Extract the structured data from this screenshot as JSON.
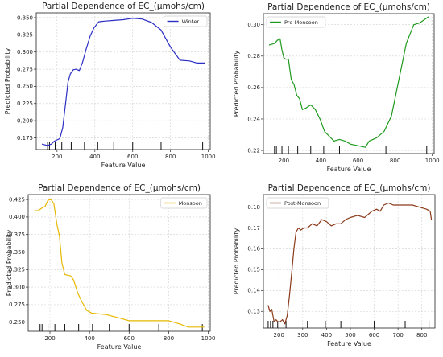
{
  "chart_data": [
    {
      "type": "line",
      "title": "Partial Dependence of EC_(µmohs/cm)",
      "xlabel": "Feature Value",
      "ylabel": "Predicted Probability",
      "xlim": [
        90,
        1010
      ],
      "ylim": [
        0.158,
        0.357
      ],
      "xticks": [
        200,
        400,
        600,
        800,
        1000
      ],
      "yticks": [
        0.175,
        0.2,
        0.225,
        0.25,
        0.275,
        0.3,
        0.325,
        0.35
      ],
      "ytick_labels": [
        "0.175",
        "0.200",
        "0.225",
        "0.250",
        "0.275",
        "0.300",
        "0.325",
        "0.350"
      ],
      "grid": true,
      "legend_position": "top-right",
      "series": [
        {
          "name": "Winter",
          "color": "#2b2fc4",
          "x": [
            120,
            150,
            170,
            185,
            200,
            215,
            230,
            245,
            258,
            270,
            285,
            300,
            318,
            335,
            355,
            375,
            395,
            420,
            450,
            500,
            550,
            600,
            650,
            700,
            750,
            800,
            850,
            900,
            940,
            980
          ],
          "y": [
            0.166,
            0.164,
            0.166,
            0.17,
            0.172,
            0.174,
            0.19,
            0.225,
            0.256,
            0.268,
            0.274,
            0.275,
            0.273,
            0.285,
            0.305,
            0.323,
            0.335,
            0.344,
            0.345,
            0.346,
            0.347,
            0.349,
            0.348,
            0.343,
            0.332,
            0.307,
            0.288,
            0.287,
            0.284,
            0.284
          ]
        }
      ],
      "rug": [
        150,
        160,
        190,
        225,
        275,
        345,
        415,
        500,
        600,
        750,
        970
      ]
    },
    {
      "type": "line",
      "title": "Partial Dependence of EC_(µmohs/cm)",
      "xlabel": "Feature Value",
      "ylabel": "Predicted Probability",
      "xlim": [
        90,
        1010
      ],
      "ylim": [
        0.218,
        0.307
      ],
      "xticks": [
        200,
        400,
        600,
        800,
        1000
      ],
      "yticks": [
        0.22,
        0.24,
        0.26,
        0.28,
        0.3
      ],
      "ytick_labels": [
        "0.22",
        "0.24",
        "0.26",
        "0.28",
        "0.30"
      ],
      "grid": true,
      "legend_position": "top-left",
      "series": [
        {
          "name": "Pre-Monsoon",
          "color": "#1e9a1e",
          "x": [
            120,
            150,
            165,
            180,
            190,
            200,
            210,
            225,
            240,
            255,
            270,
            285,
            300,
            320,
            345,
            370,
            395,
            420,
            445,
            470,
            500,
            530,
            560,
            600,
            640,
            660,
            700,
            740,
            780,
            820,
            860,
            900,
            930,
            980
          ],
          "y": [
            0.287,
            0.288,
            0.29,
            0.291,
            0.284,
            0.279,
            0.278,
            0.278,
            0.265,
            0.262,
            0.255,
            0.253,
            0.246,
            0.247,
            0.249,
            0.246,
            0.24,
            0.232,
            0.229,
            0.226,
            0.227,
            0.226,
            0.224,
            0.223,
            0.222,
            0.226,
            0.228,
            0.232,
            0.242,
            0.265,
            0.288,
            0.3,
            0.301,
            0.305
          ]
        }
      ],
      "rug": [
        150,
        160,
        190,
        225,
        275,
        345,
        415,
        500,
        600,
        750,
        970
      ]
    },
    {
      "type": "line",
      "title": "Partial Dependence of EC_(µmohs/cm)",
      "xlabel": "Feature Value",
      "ylabel": "Predicted Probability",
      "xlim": [
        90,
        1010
      ],
      "ylim": [
        0.237,
        0.432
      ],
      "xticks": [
        200,
        400,
        600,
        800,
        1000
      ],
      "yticks": [
        0.25,
        0.275,
        0.3,
        0.325,
        0.35,
        0.375,
        0.4,
        0.425
      ],
      "ytick_labels": [
        "0.250",
        "0.275",
        "0.300",
        "0.325",
        "0.350",
        "0.375",
        "0.400",
        "0.425"
      ],
      "grid": true,
      "legend_position": "top-right",
      "series": [
        {
          "name": "Monsoon",
          "color": "#e6b800",
          "x": [
            120,
            140,
            160,
            175,
            190,
            205,
            220,
            235,
            248,
            260,
            275,
            290,
            305,
            320,
            340,
            360,
            385,
            410,
            440,
            480,
            550,
            600,
            650,
            700,
            750,
            800,
            850,
            900,
            950,
            980
          ],
          "y": [
            0.409,
            0.409,
            0.413,
            0.415,
            0.424,
            0.425,
            0.419,
            0.39,
            0.373,
            0.335,
            0.318,
            0.317,
            0.316,
            0.31,
            0.292,
            0.28,
            0.267,
            0.263,
            0.262,
            0.261,
            0.256,
            0.252,
            0.252,
            0.252,
            0.252,
            0.252,
            0.248,
            0.243,
            0.243,
            0.243
          ]
        }
      ],
      "rug": [
        150,
        160,
        190,
        225,
        275,
        345,
        415,
        500,
        600,
        750,
        970
      ]
    },
    {
      "type": "line",
      "title": "Partial Dependence of EC_(µmohs/cm)",
      "xlabel": "Feature Value",
      "ylabel": "Predicted Probability",
      "xlim": [
        135,
        855
      ],
      "ylim": [
        0.122,
        0.186
      ],
      "xticks": [
        200,
        300,
        400,
        500,
        600,
        700,
        800
      ],
      "yticks": [
        0.13,
        0.14,
        0.15,
        0.16,
        0.17,
        0.18
      ],
      "ytick_labels": [
        "0.13",
        "0.14",
        "0.15",
        "0.16",
        "0.17",
        "0.18"
      ],
      "grid": true,
      "legend_position": "top-left",
      "series": [
        {
          "name": "Post-Monsoon",
          "color": "#8b3a1a",
          "x": [
            155,
            162,
            170,
            180,
            188,
            196,
            205,
            215,
            225,
            235,
            245,
            255,
            263,
            272,
            282,
            292,
            305,
            320,
            340,
            360,
            380,
            400,
            420,
            440,
            460,
            480,
            500,
            530,
            560,
            590,
            610,
            625,
            640,
            660,
            680,
            700,
            720,
            740,
            760,
            790,
            820,
            835,
            840
          ],
          "y": [
            0.133,
            0.13,
            0.131,
            0.125,
            0.126,
            0.125,
            0.125,
            0.126,
            0.124,
            0.128,
            0.138,
            0.15,
            0.16,
            0.168,
            0.17,
            0.169,
            0.17,
            0.17,
            0.172,
            0.171,
            0.174,
            0.173,
            0.171,
            0.172,
            0.172,
            0.174,
            0.175,
            0.176,
            0.175,
            0.178,
            0.179,
            0.178,
            0.181,
            0.182,
            0.181,
            0.181,
            0.181,
            0.181,
            0.181,
            0.18,
            0.179,
            0.178,
            0.174
          ]
        }
      ],
      "rug": [
        155,
        165,
        175,
        195,
        230,
        320,
        395,
        460,
        600,
        730,
        830
      ]
    }
  ]
}
